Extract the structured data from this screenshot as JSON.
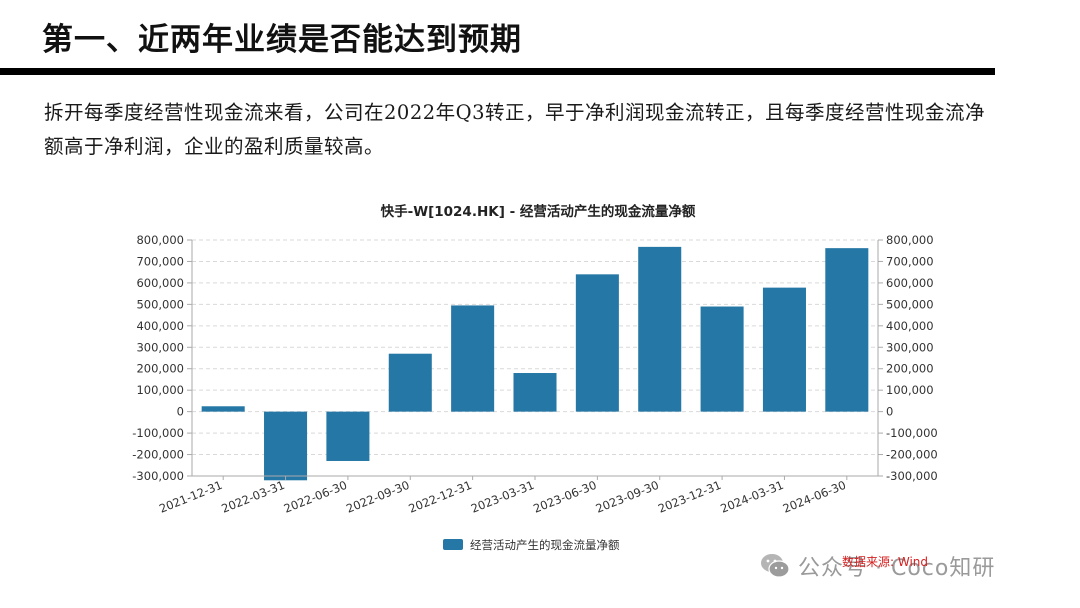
{
  "page": {
    "title": "第一、近两年业绩是否能达到预期",
    "body": "拆开每季度经营性现金流来看，公司在2022年Q3转正，早于净利润现金流转正，且每季度经营性现金流净额高于净利润，企业的盈利质量较高。",
    "source": "数据来源: Wind",
    "watermark": "公众号 · Coco知研"
  },
  "colors": {
    "bar": "#2577a5",
    "grid": "#d9d9d9",
    "axis": "#aaaaaa",
    "title_rule": "#000000",
    "source": "#d62020"
  },
  "chart_data": {
    "type": "bar",
    "title": "快手-W[1024.HK] - 经营活动产生的现金流量净额",
    "xlabel": "",
    "ylabel": "",
    "categories": [
      "2021-12-31",
      "2022-03-31",
      "2022-06-30",
      "2022-09-30",
      "2022-12-31",
      "2023-03-31",
      "2023-06-30",
      "2023-09-30",
      "2023-12-31",
      "2024-03-31",
      "2024-06-30"
    ],
    "series": [
      {
        "name": "经营活动产生的现金流量净额",
        "values": [
          25000,
          -320000,
          -230000,
          270000,
          495000,
          180000,
          640000,
          768000,
          490000,
          578000,
          762000
        ]
      }
    ],
    "ylim": [
      -300000,
      800000
    ],
    "yticks": [
      800000,
      700000,
      600000,
      500000,
      400000,
      300000,
      200000,
      100000,
      0,
      -100000,
      -200000,
      -300000
    ],
    "ytick_labels": [
      "800,000",
      "700,000",
      "600,000",
      "500,000",
      "400,000",
      "300,000",
      "200,000",
      "100,000",
      "0",
      "-100,000",
      "-200,000",
      "-300,000"
    ],
    "secondary_y_axis": true,
    "grid": true,
    "legend_position": "bottom-center"
  }
}
